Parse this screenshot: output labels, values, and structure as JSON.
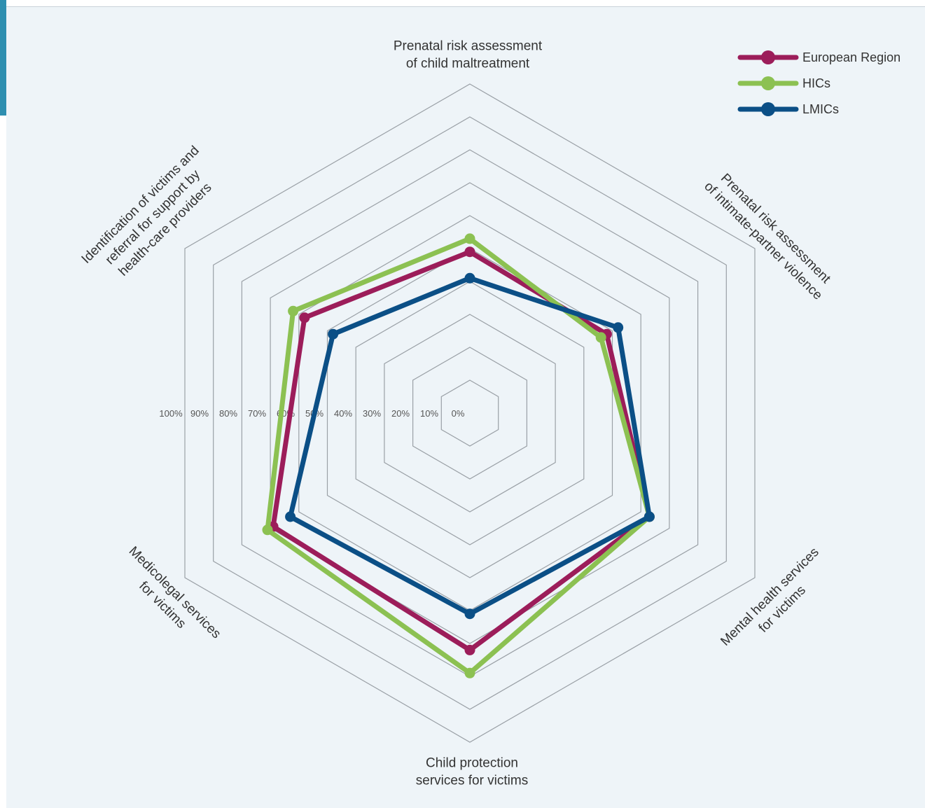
{
  "chart_data": {
    "type": "radar",
    "axes": [
      [
        "Prenatal risk assessment",
        "of child maltreatment"
      ],
      [
        "Prenatal risk assessment",
        "of intimate-partner violence"
      ],
      [
        "Mental health services",
        "for victims"
      ],
      [
        "Child protection",
        "services for victims"
      ],
      [
        "Medicolegal services",
        "for victims"
      ],
      [
        "Identification of victims and",
        "referral for support by",
        "health-care providers"
      ]
    ],
    "tick_labels": [
      "0%",
      "10%",
      "20%",
      "30%",
      "40%",
      "50%",
      "60%",
      "70%",
      "80%",
      "90%",
      "100%"
    ],
    "rlim": [
      0,
      100
    ],
    "series": [
      {
        "name": "European Region",
        "color": "#9c1d5a",
        "values": [
          49,
          48,
          63,
          72,
          69,
          58
        ]
      },
      {
        "name": "HICs",
        "color": "#8cc152",
        "values": [
          53,
          46,
          63,
          79,
          71,
          62
        ]
      },
      {
        "name": "LMICs",
        "color": "#0b4f86",
        "values": [
          41,
          52,
          63,
          61,
          63,
          48
        ]
      }
    ],
    "legend_position": "top-right",
    "grid": true
  }
}
